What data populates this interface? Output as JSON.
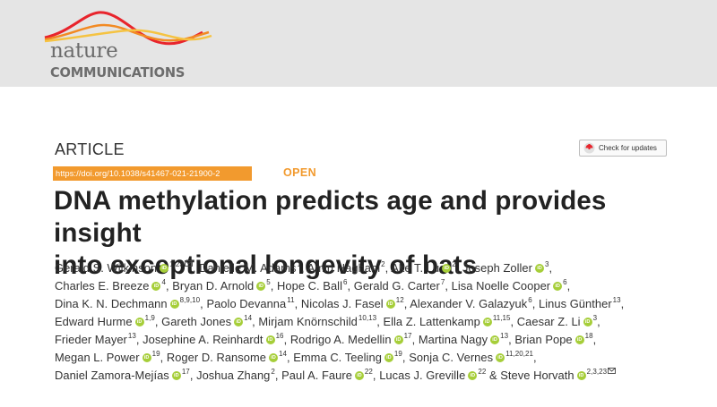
{
  "header": {
    "logo_word_1": "nature",
    "logo_word_2": "COMMUNICATIONS",
    "wave_colors": [
      "#e8242c",
      "#f28a23",
      "#f5c342"
    ]
  },
  "article": {
    "label": "ARTICLE",
    "doi": "https://doi.org/10.1038/s41467-021-21900-2",
    "access": "OPEN",
    "check_updates": "Check for updates",
    "title_line_1": "DNA methylation predicts age and provides insight",
    "title_line_2": "into exceptional longevity of bats"
  },
  "colors": {
    "doi_background": "#f29a2e",
    "orcid": "#a6ce39",
    "banner": "#e5e5e5"
  },
  "authors": [
    [
      {
        "name": "Gerald S. Wilkinson",
        "orcid": true,
        "aff": "1,23",
        "email": true,
        "sep": ", "
      },
      {
        "name": "Danielle M. Adams",
        "orcid": false,
        "aff": "1",
        "sep": ", "
      },
      {
        "name": "Amin Haghani",
        "orcid": false,
        "aff": "2",
        "sep": ", "
      },
      {
        "name": "Ake T. Lu",
        "orcid": true,
        "aff": "2",
        "sep": ", "
      },
      {
        "name": "Joseph Zoller",
        "orcid": true,
        "aff": "3",
        "sep": ","
      }
    ],
    [
      {
        "name": "Charles E. Breeze",
        "orcid": true,
        "aff": "4",
        "sep": ", "
      },
      {
        "name": "Bryan D. Arnold",
        "orcid": true,
        "aff": "5",
        "sep": ", "
      },
      {
        "name": "Hope C. Ball",
        "orcid": false,
        "aff": "6",
        "sep": ", "
      },
      {
        "name": "Gerald G. Carter",
        "orcid": false,
        "aff": "7",
        "sep": ", "
      },
      {
        "name": "Lisa Noelle Cooper",
        "orcid": true,
        "aff": "6",
        "sep": ","
      }
    ],
    [
      {
        "name": "Dina K. N. Dechmann",
        "orcid": true,
        "aff": "8,9,10",
        "sep": ", "
      },
      {
        "name": "Paolo Devanna",
        "orcid": false,
        "aff": "11",
        "sep": ", "
      },
      {
        "name": "Nicolas J. Fasel",
        "orcid": true,
        "aff": "12",
        "sep": ", "
      },
      {
        "name": "Alexander V. Galazyuk",
        "orcid": false,
        "aff": "6",
        "sep": ", "
      },
      {
        "name": "Linus Günther",
        "orcid": false,
        "aff": "13",
        "sep": ","
      }
    ],
    [
      {
        "name": "Edward Hurme",
        "orcid": true,
        "aff": "1,9",
        "sep": ", "
      },
      {
        "name": "Gareth Jones",
        "orcid": true,
        "aff": "14",
        "sep": ", "
      },
      {
        "name": "Mirjam Knörnschild",
        "orcid": false,
        "aff": "10,13",
        "sep": ", "
      },
      {
        "name": "Ella Z. Lattenkamp",
        "orcid": true,
        "aff": "11,15",
        "sep": ", "
      },
      {
        "name": "Caesar Z. Li",
        "orcid": true,
        "aff": "3",
        "sep": ","
      }
    ],
    [
      {
        "name": "Frieder Mayer",
        "orcid": false,
        "aff": "13",
        "sep": ", "
      },
      {
        "name": "Josephine A. Reinhardt",
        "orcid": true,
        "aff": "16",
        "sep": ", "
      },
      {
        "name": "Rodrigo A. Medellin",
        "orcid": true,
        "aff": "17",
        "sep": ", "
      },
      {
        "name": "Martina Nagy",
        "orcid": true,
        "aff": "13",
        "sep": ", "
      },
      {
        "name": "Brian Pope",
        "orcid": true,
        "aff": "18",
        "sep": ","
      }
    ],
    [
      {
        "name": "Megan L. Power",
        "orcid": true,
        "aff": "19",
        "sep": ", "
      },
      {
        "name": "Roger D. Ransome",
        "orcid": true,
        "aff": "14",
        "sep": ", "
      },
      {
        "name": "Emma C. Teeling",
        "orcid": true,
        "aff": "19",
        "sep": ", "
      },
      {
        "name": "Sonja C. Vernes",
        "orcid": true,
        "aff": "11,20,21",
        "sep": ","
      }
    ],
    [
      {
        "name": "Daniel Zamora-Mejías",
        "orcid": true,
        "aff": "17",
        "sep": ", "
      },
      {
        "name": "Joshua Zhang",
        "orcid": false,
        "aff": "2",
        "sep": ", "
      },
      {
        "name": "Paul A. Faure",
        "orcid": true,
        "aff": "22",
        "sep": ", "
      },
      {
        "name": "Lucas J. Greville",
        "orcid": true,
        "aff": "22",
        "sep": " & "
      },
      {
        "name": "Steve Horvath",
        "orcid": true,
        "aff": "2,3,23",
        "email": true,
        "sep": ""
      }
    ]
  ]
}
